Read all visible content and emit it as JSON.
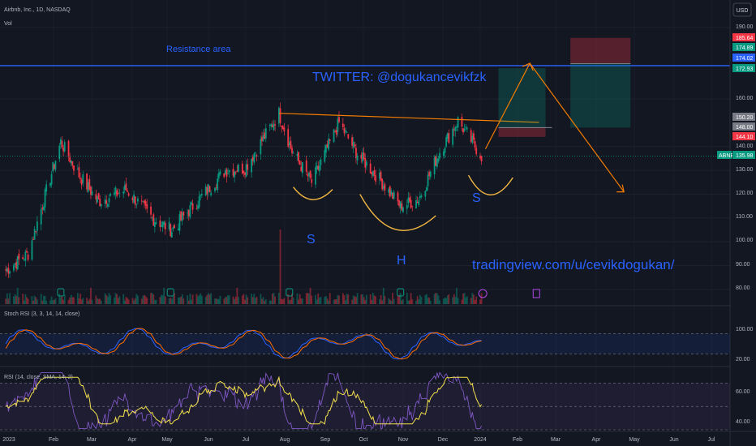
{
  "header": {
    "symbol_line": "Airbnb, Inc., 1D, NASDAQ",
    "volume_label": "Vol",
    "currency": "USD"
  },
  "annotations": {
    "resistance": "Resistance area",
    "twitter": "TWITTER: @dogukancevikfzk",
    "tradingview": "tradingview.com/u/cevikdogukan/",
    "left_shoulder": "S",
    "head": "H",
    "right_shoulder": "S"
  },
  "price_axis": {
    "ticks": [
      "190.00",
      "160.00",
      "140.00",
      "130.00",
      "120.00",
      "110.00",
      "100.00",
      "90.00",
      "80.00"
    ],
    "badges": [
      {
        "text": "185.64",
        "color": "#f23645"
      },
      {
        "text": "174.89",
        "color": "#089981"
      },
      {
        "text": "174.02",
        "color": "#2962ff"
      },
      {
        "text": "172.93",
        "color": "#089981"
      },
      {
        "text": "150.20",
        "color": "#787b86"
      },
      {
        "text": "148.00",
        "color": "#787b86"
      },
      {
        "text": "144.10",
        "color": "#f23645"
      },
      {
        "text": "135.98",
        "color": "#089981"
      }
    ],
    "ticker_badge": "ABNB"
  },
  "indicators": {
    "stoch_label": "Stoch RSI (3, 3, 14, 14, close)",
    "stoch_ticks": [
      "100.00",
      "20.00"
    ],
    "rsi_label": "RSI (14, close, SMA, 14, 2)",
    "rsi_ticks": [
      "60.00",
      "40.00"
    ]
  },
  "time_axis": [
    "2023",
    "Feb",
    "Mar",
    "Apr",
    "May",
    "Jun",
    "Jul",
    "Aug",
    "Sep",
    "Oct",
    "Nov",
    "Dec",
    "2024",
    "Feb",
    "Mar",
    "Apr",
    "May",
    "Jun",
    "Jul"
  ],
  "colors": {
    "background": "#131722",
    "up": "#089981",
    "down": "#f23645",
    "resistance_line": "#2962ff",
    "annotation_blue": "#2962ff",
    "orange": "#f57c00",
    "yellow": "#f5b942",
    "stoch_k": "#2962ff",
    "stoch_d": "#ff6d00",
    "rsi": "#7e57c2",
    "rsi_ma": "#f4e04d"
  },
  "chart_data": {
    "type": "candlestick",
    "title": "Airbnb, Inc., 1D, NASDAQ",
    "x": [
      "2023-01",
      "2023-02",
      "2023-03",
      "2023-04",
      "2023-05",
      "2023-06",
      "2023-07",
      "2023-08",
      "2023-09",
      "2023-10",
      "2023-11",
      "2023-12",
      "2024-01",
      "2024-02",
      "2024-03",
      "2024-04",
      "2024-05",
      "2024-06",
      "2024-07"
    ],
    "close_path": [
      {
        "date": "2023-01-03",
        "price": 88
      },
      {
        "date": "2023-01-20",
        "price": 95
      },
      {
        "date": "2023-02-14",
        "price": 142
      },
      {
        "date": "2023-02-28",
        "price": 128
      },
      {
        "date": "2023-03-15",
        "price": 117
      },
      {
        "date": "2023-04-05",
        "price": 122
      },
      {
        "date": "2023-04-25",
        "price": 110
      },
      {
        "date": "2023-05-10",
        "price": 105
      },
      {
        "date": "2023-05-31",
        "price": 118
      },
      {
        "date": "2023-06-20",
        "price": 130
      },
      {
        "date": "2023-07-05",
        "price": 131
      },
      {
        "date": "2023-07-31",
        "price": 154
      },
      {
        "date": "2023-08-10",
        "price": 138
      },
      {
        "date": "2023-08-25",
        "price": 125
      },
      {
        "date": "2023-09-15",
        "price": 150
      },
      {
        "date": "2023-09-29",
        "price": 137
      },
      {
        "date": "2023-10-15",
        "price": 127
      },
      {
        "date": "2023-11-01",
        "price": 115
      },
      {
        "date": "2023-11-15",
        "price": 118
      },
      {
        "date": "2023-12-01",
        "price": 138
      },
      {
        "date": "2023-12-15",
        "price": 151
      },
      {
        "date": "2024-01-02",
        "price": 136
      }
    ],
    "last_price": 135.98,
    "resistance": 174.02,
    "neckline": [
      {
        "date": "2023-07-31",
        "price": 154
      },
      {
        "date": "2024-02-15",
        "price": 150.2
      }
    ],
    "long_position": {
      "entry": 148.0,
      "stop": 144.1,
      "target": 172.93
    },
    "short_position": {
      "entry": 174.89,
      "stop": 185.64,
      "target": 148.0
    },
    "stoch_rsi_levels": [
      80,
      20
    ],
    "rsi_levels": [
      70,
      50,
      30
    ],
    "ylim": [
      78,
      196
    ]
  }
}
